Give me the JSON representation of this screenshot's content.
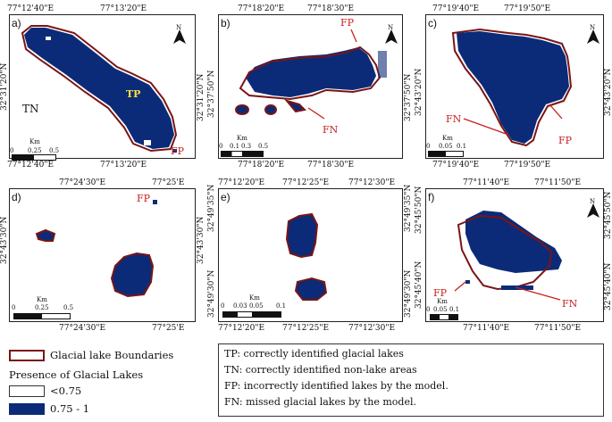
{
  "colors": {
    "lake": "#0b2b78",
    "boundary": "#7a1515",
    "annotation": "#c8201e",
    "tp": "#ffe13a"
  },
  "panels": [
    {
      "label": "a)",
      "top_coords": [
        "77°12'40\"E",
        "77°13'20\"E"
      ],
      "bottom_coords": [
        "77°12'40\"E",
        "77°13'20\"E"
      ],
      "left_coords": [
        "32°31'20\"N"
      ],
      "right_coords": [
        "32°31'20\"N"
      ],
      "annotations": {
        "tp": "TP",
        "tn": "TN",
        "fp": "FP"
      },
      "scale": {
        "unit": "Km",
        "ticks": [
          "0",
          "0.25",
          "0.5"
        ]
      }
    },
    {
      "label": "b)",
      "top_coords": [
        "77°18'20\"E",
        "77°18'30\"E"
      ],
      "bottom_coords": [
        "77°18'20\"E",
        "77°18'30\"E"
      ],
      "left_coords": [
        "32°37'50\"N"
      ],
      "right_coords": [
        "32°37'50\"N"
      ],
      "annotations": {
        "fp": "FP",
        "fn": "FN"
      },
      "scale": {
        "unit": "Km",
        "ticks": [
          "0",
          "0.1",
          "0.3",
          "0.5"
        ]
      }
    },
    {
      "label": "c)",
      "top_coords": [
        "77°19'40\"E",
        "77°19'50\"E"
      ],
      "bottom_coords": [
        "77°19'40\"E",
        "77°19'50\"E"
      ],
      "left_coords": [
        "32°43'20\"N"
      ],
      "right_coords": [
        "32°43'20\"N"
      ],
      "annotations": {
        "fn": "FN",
        "fp": "FP"
      },
      "scale": {
        "unit": "Km",
        "ticks": [
          "0",
          "0.05",
          "0.1"
        ]
      }
    },
    {
      "label": "d)",
      "top_coords": [
        "77°24'30\"E",
        "77°25'E"
      ],
      "bottom_coords": [
        "77°24'30\"E",
        "77°25'E"
      ],
      "left_coords": [
        "32°43'30\"N"
      ],
      "right_coords": [
        "32°43'30\"N"
      ],
      "annotations": {
        "fp": "FP"
      },
      "scale": {
        "unit": "Km",
        "ticks": [
          "0",
          "0.25",
          "0.5"
        ]
      }
    },
    {
      "label": "e)",
      "top_coords": [
        "77°12'20\"E",
        "77°12'25\"E",
        "77°12'30\"E"
      ],
      "bottom_coords": [
        "77°12'20\"E",
        "77°12'25\"E",
        "77°12'30\"E"
      ],
      "left_coords": [
        "32°49'35\"N",
        "32°49'30\"N"
      ],
      "right_coords": [
        "32°49'35\"N",
        "32°49'30\"N"
      ],
      "annotations": {},
      "scale": {
        "unit": "Km",
        "ticks": [
          "0",
          "0.03",
          "0.05",
          "0.1"
        ]
      }
    },
    {
      "label": "f)",
      "top_coords": [
        "77°11'40\"E",
        "77°11'50\"E"
      ],
      "bottom_coords": [
        "77°11'40\"E",
        "77°11'50\"E"
      ],
      "left_coords": [
        "32°45'50\"N",
        "32°45'40\"N"
      ],
      "right_coords": [
        "32°45'50\"N",
        "32°45'40\"N"
      ],
      "annotations": {
        "fp": "FP",
        "fn": "FN"
      },
      "scale": {
        "unit": "Km",
        "ticks": [
          "0",
          "0.05",
          "0.1"
        ]
      }
    }
  ],
  "north_label": "N",
  "legend": {
    "boundary_label": "Glacial lake Boundaries",
    "presence_title": "Presence of Glacial Lakes",
    "class_low": "<0.75",
    "class_high": "0.75 - 1"
  },
  "definitions": [
    "TP: correctly identified glacial lakes",
    "TN: correctly identified non-lake areas",
    "FP: incorrectly identified lakes by the model.",
    "FN: missed glacial lakes by the model."
  ]
}
